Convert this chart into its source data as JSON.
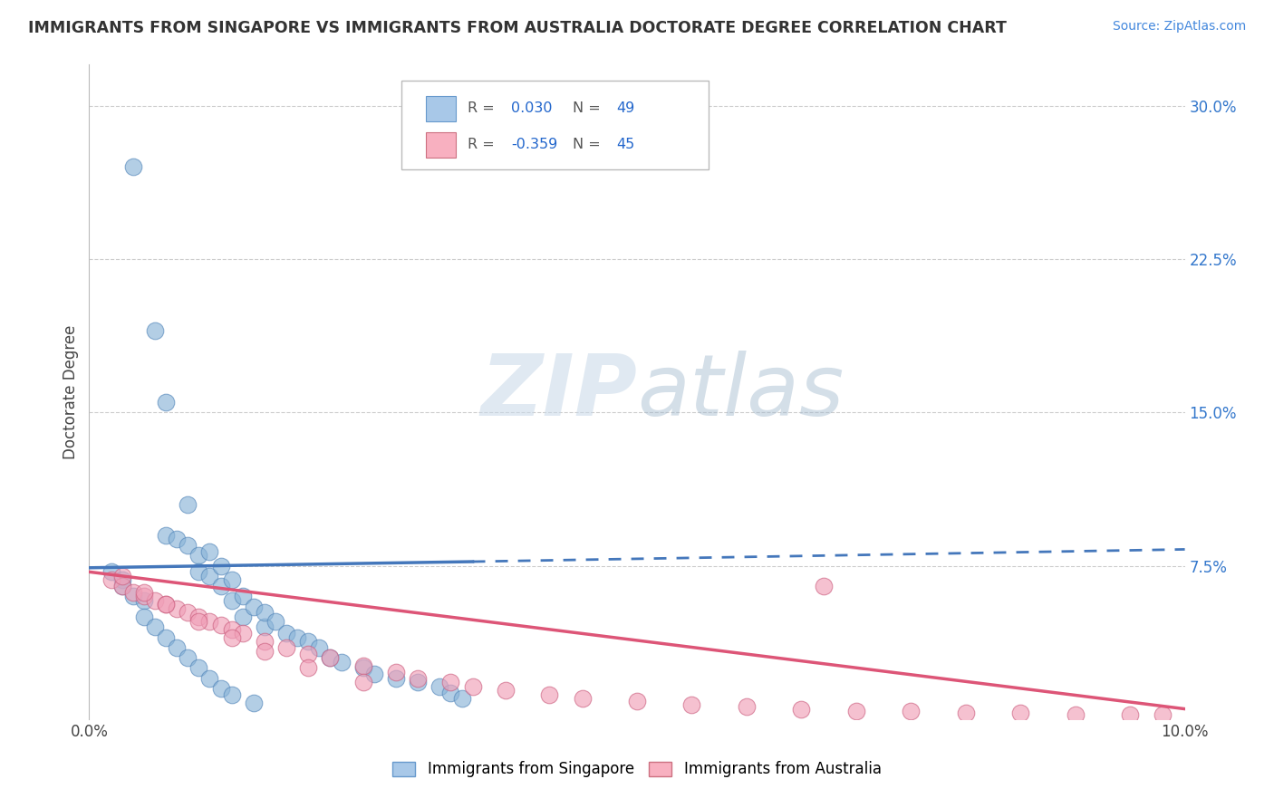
{
  "title": "IMMIGRANTS FROM SINGAPORE VS IMMIGRANTS FROM AUSTRALIA DOCTORATE DEGREE CORRELATION CHART",
  "source_text": "Source: ZipAtlas.com",
  "ylabel": "Doctorate Degree",
  "y_tick_labels": [
    "7.5%",
    "15.0%",
    "22.5%",
    "30.0%"
  ],
  "y_tick_values": [
    0.075,
    0.15,
    0.225,
    0.3
  ],
  "xlim": [
    0.0,
    0.1
  ],
  "ylim": [
    0.0,
    0.32
  ],
  "singapore_color": "#8ab4d8",
  "singapore_edge": "#5588bb",
  "australia_color": "#f0a0b8",
  "australia_edge": "#cc6080",
  "trend_sg_color": "#4477bb",
  "trend_au_color": "#dd5577",
  "background_color": "#ffffff",
  "grid_color": "#cccccc",
  "sg_trend_x0": 0.0,
  "sg_trend_y0": 0.074,
  "sg_trend_x1": 0.035,
  "sg_trend_y1": 0.077,
  "sg_trend_xdash_end": 0.1,
  "sg_trend_ydash_end": 0.083,
  "au_trend_x0": 0.0,
  "au_trend_y0": 0.072,
  "au_trend_x1": 0.1,
  "au_trend_y1": 0.005,
  "singapore_scatter_x": [
    0.004,
    0.006,
    0.007,
    0.007,
    0.008,
    0.009,
    0.009,
    0.01,
    0.01,
    0.011,
    0.011,
    0.012,
    0.012,
    0.013,
    0.013,
    0.014,
    0.014,
    0.015,
    0.016,
    0.016,
    0.017,
    0.018,
    0.019,
    0.02,
    0.021,
    0.022,
    0.023,
    0.025,
    0.026,
    0.028,
    0.03,
    0.032,
    0.033,
    0.034,
    0.002,
    0.003,
    0.003,
    0.004,
    0.005,
    0.005,
    0.006,
    0.007,
    0.008,
    0.009,
    0.01,
    0.011,
    0.012,
    0.013,
    0.015
  ],
  "singapore_scatter_y": [
    0.27,
    0.19,
    0.155,
    0.09,
    0.088,
    0.085,
    0.105,
    0.08,
    0.072,
    0.07,
    0.082,
    0.075,
    0.065,
    0.068,
    0.058,
    0.06,
    0.05,
    0.055,
    0.045,
    0.052,
    0.048,
    0.042,
    0.04,
    0.038,
    0.035,
    0.03,
    0.028,
    0.025,
    0.022,
    0.02,
    0.018,
    0.016,
    0.013,
    0.01,
    0.072,
    0.068,
    0.065,
    0.06,
    0.058,
    0.05,
    0.045,
    0.04,
    0.035,
    0.03,
    0.025,
    0.02,
    0.015,
    0.012,
    0.008
  ],
  "australia_scatter_x": [
    0.002,
    0.003,
    0.004,
    0.005,
    0.006,
    0.007,
    0.008,
    0.009,
    0.01,
    0.011,
    0.012,
    0.013,
    0.014,
    0.016,
    0.018,
    0.02,
    0.022,
    0.025,
    0.028,
    0.03,
    0.033,
    0.035,
    0.038,
    0.042,
    0.045,
    0.05,
    0.055,
    0.06,
    0.065,
    0.07,
    0.075,
    0.08,
    0.085,
    0.09,
    0.095,
    0.098,
    0.003,
    0.005,
    0.007,
    0.01,
    0.013,
    0.016,
    0.02,
    0.025,
    0.067
  ],
  "australia_scatter_y": [
    0.068,
    0.065,
    0.062,
    0.06,
    0.058,
    0.056,
    0.054,
    0.052,
    0.05,
    0.048,
    0.046,
    0.044,
    0.042,
    0.038,
    0.035,
    0.032,
    0.03,
    0.026,
    0.023,
    0.02,
    0.018,
    0.016,
    0.014,
    0.012,
    0.01,
    0.009,
    0.007,
    0.006,
    0.005,
    0.004,
    0.004,
    0.003,
    0.003,
    0.002,
    0.002,
    0.002,
    0.07,
    0.062,
    0.056,
    0.048,
    0.04,
    0.033,
    0.025,
    0.018,
    0.065
  ]
}
